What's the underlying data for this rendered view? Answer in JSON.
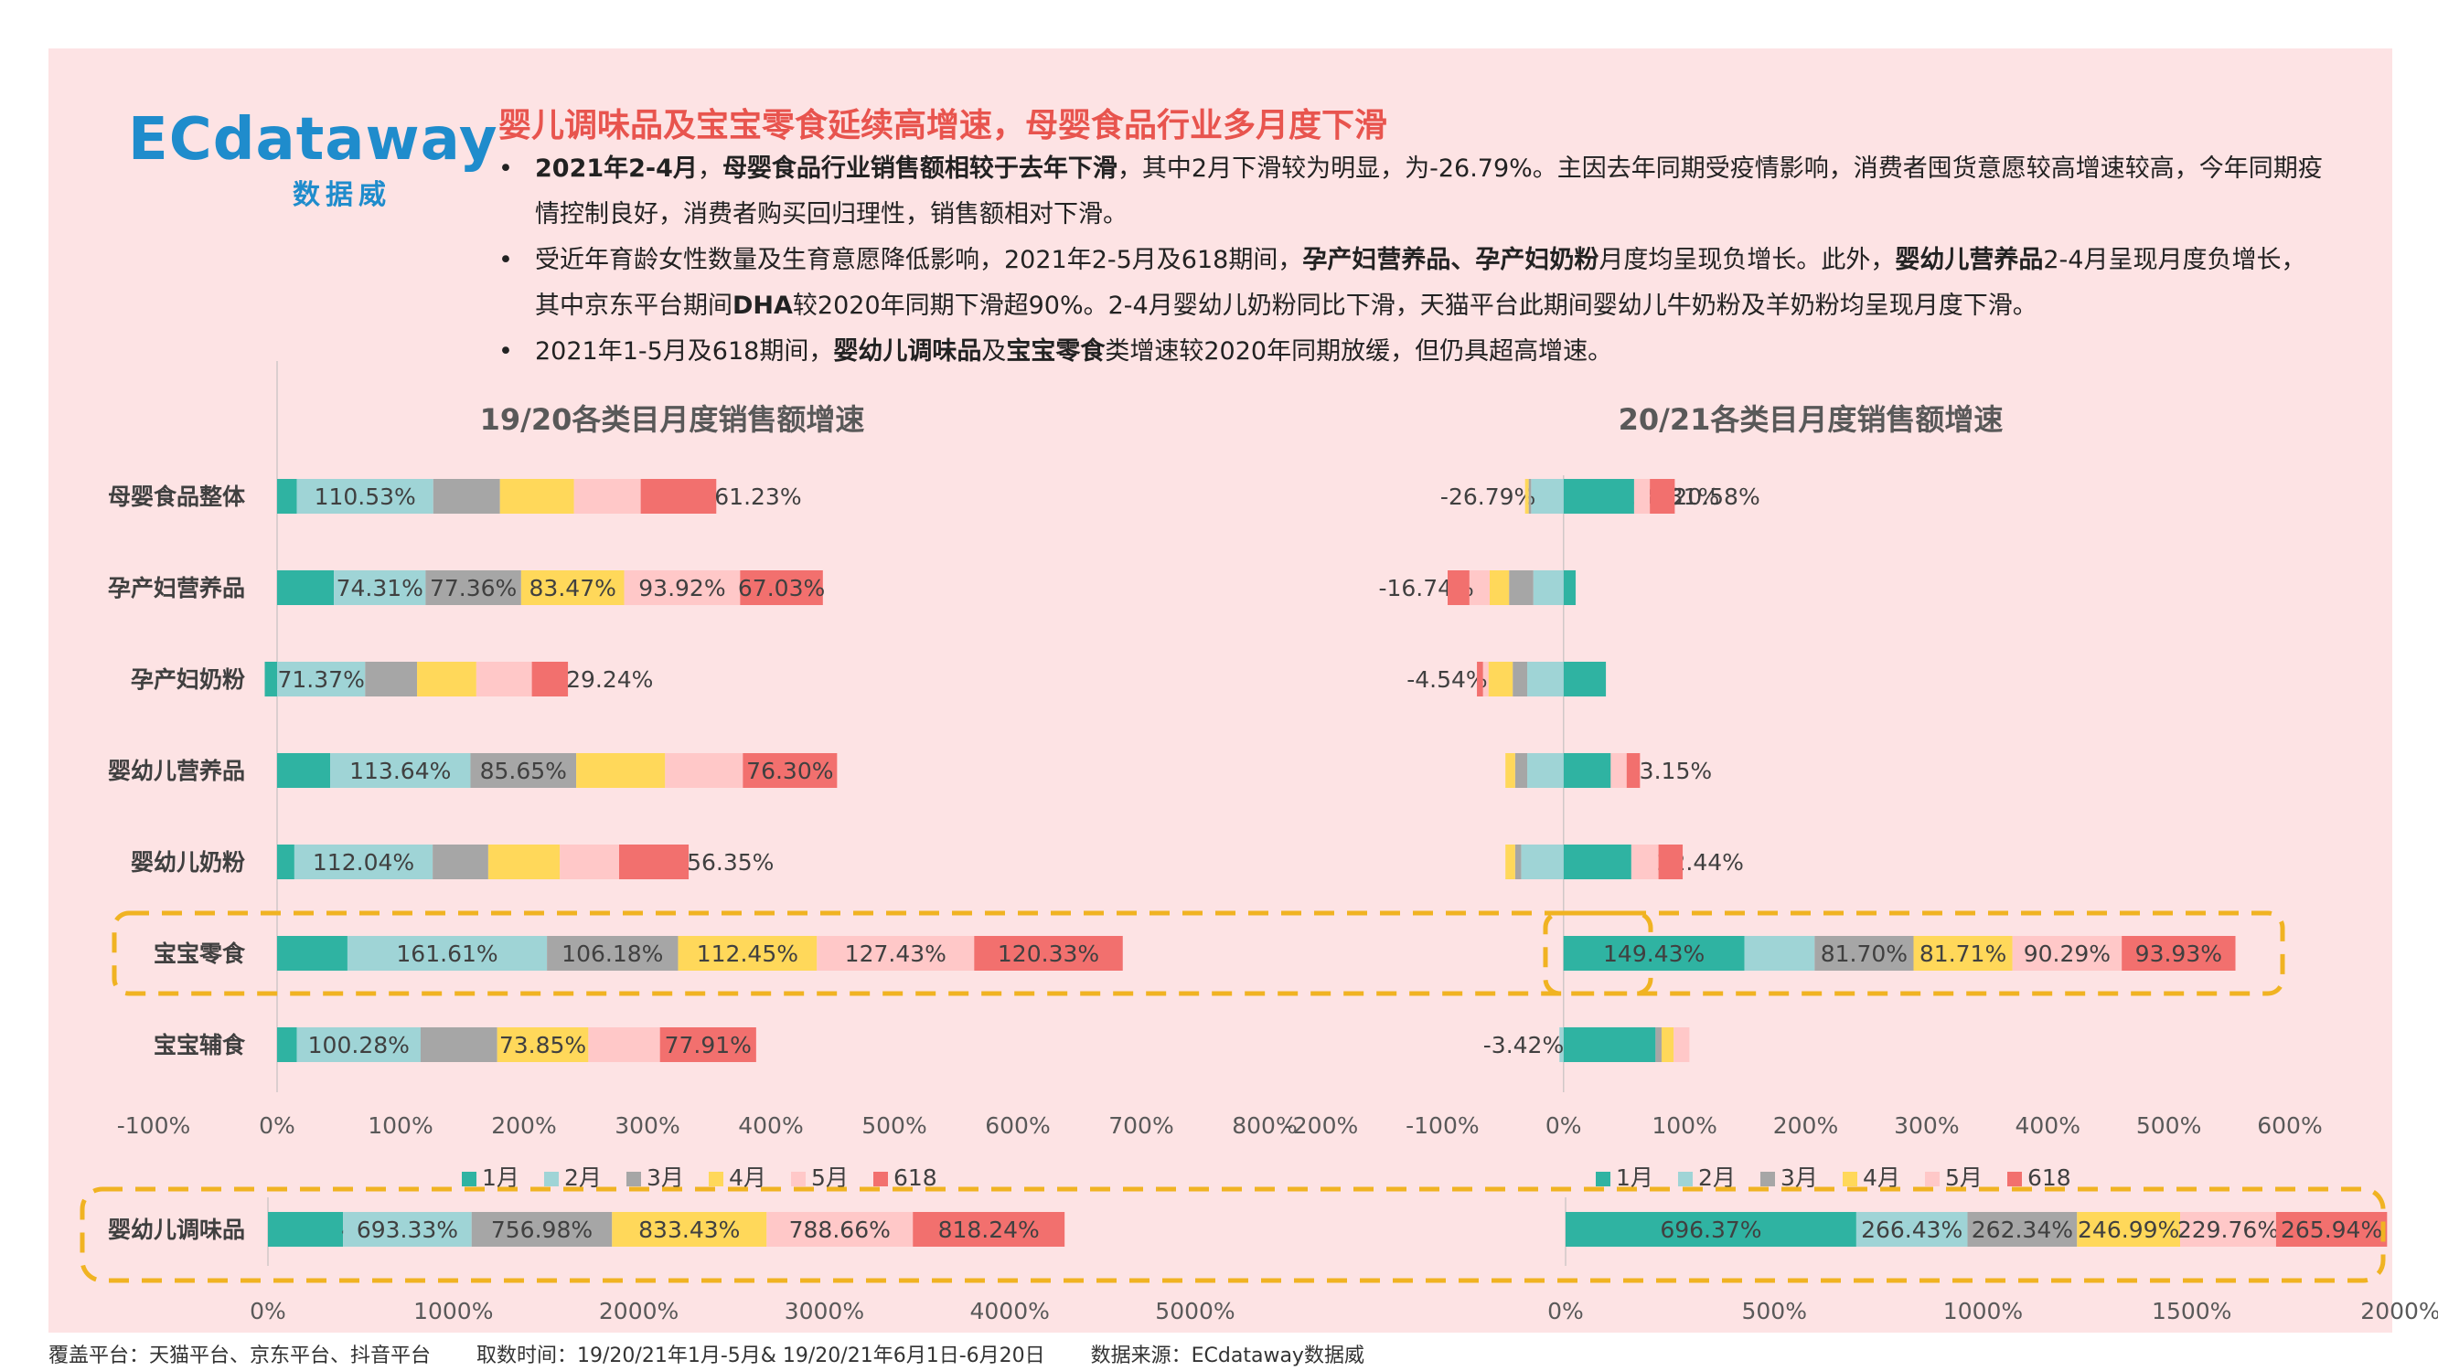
{
  "logo": {
    "brand": "ECdataway",
    "sub": "数据威"
  },
  "headline": "婴儿调味品及宝宝零食延续高增速，母婴食品行业多月度下滑",
  "bullets": [
    [
      {
        "t": "2021年2-4月",
        "b": true
      },
      {
        "t": "，",
        "b": false
      },
      {
        "t": "母婴食品行业销售额相较于去年下滑",
        "b": true
      },
      {
        "t": "，其中2月下滑较为明显，为-26.79%。主因去年同期受疫情影响，消费者囤货意愿较高增速较高，今年同期疫情控制良好，消费者购买回归理性，销售额相对下滑。",
        "b": false
      }
    ],
    [
      {
        "t": "受近年育龄女性数量及生育意愿降低影响，2021年2-5月及618期间，",
        "b": false
      },
      {
        "t": "孕产妇营养品、孕产妇奶粉",
        "b": true
      },
      {
        "t": "月度均呈现负增长。此外，",
        "b": false
      },
      {
        "t": "婴幼儿营养品",
        "b": true
      },
      {
        "t": "2-4月呈现月度负增长，其中京东平台期间",
        "b": false
      },
      {
        "t": "DHA",
        "b": true
      },
      {
        "t": "较2020年同期下滑超90%。2-4月婴幼儿奶粉同比下滑，天猫平台此期间婴幼儿牛奶粉及羊奶粉均呈现月度下滑。",
        "b": false
      }
    ],
    [
      {
        "t": "2021年1-5月及618期间，",
        "b": false
      },
      {
        "t": "婴幼儿调味品",
        "b": true
      },
      {
        "t": "及",
        "b": false
      },
      {
        "t": "宝宝零食",
        "b": true
      },
      {
        "t": "类增速较2020年同期放缓，但仍具超高增速。",
        "b": false
      }
    ]
  ],
  "footer": {
    "platform": "覆盖平台：天猫平台、京东平台、抖音平台",
    "period": "取数时间：19/20/21年1月-5月& 19/20/21年6月1日-6月20日",
    "source": "数据来源：ECdataway数据威"
  },
  "colors": {
    "jan": "#2fb3a2",
    "feb": "#9fd4d6",
    "mar": "#a6a6a6",
    "apr": "#ffd85a",
    "may": "#ffc8c8",
    "s618": "#f2706e",
    "highlight": "#f0b322"
  },
  "chart_data": [
    {
      "type": "bar",
      "stacked": true,
      "orientation": "horizontal",
      "title": "19/20各类目月度销售额增速",
      "categories": [
        "母婴食品整体",
        "孕产妇营养品",
        "孕产妇奶粉",
        "婴幼儿营养品",
        "婴幼儿奶粉",
        "宝宝零食",
        "宝宝辅食"
      ],
      "xlim": [
        -100,
        800
      ],
      "xticks": [
        "-100%",
        "0%",
        "100%",
        "200%",
        "300%",
        "400%",
        "500%",
        "600%",
        "700%",
        "800%"
      ],
      "legend": "bottom",
      "series": [
        {
          "name": "1月",
          "values": [
            16,
            46,
            -10,
            43,
            14,
            57,
            16
          ]
        },
        {
          "name": "2月",
          "values": [
            110.53,
            74.31,
            71.37,
            113.64,
            112.04,
            161.61,
            100.28
          ]
        },
        {
          "name": "3月",
          "values": [
            54,
            77.36,
            42,
            85.65,
            45,
            106.18,
            62
          ]
        },
        {
          "name": "4月",
          "values": [
            60,
            83.47,
            48,
            72,
            58,
            112.45,
            73.85
          ]
        },
        {
          "name": "5月",
          "values": [
            54,
            93.92,
            45,
            63,
            48,
            127.43,
            58
          ]
        },
        {
          "name": "618",
          "values": [
            61.23,
            67.03,
            29.24,
            76.3,
            56.35,
            120.33,
            77.91
          ]
        }
      ],
      "labels": [
        [
          "",
          "110.53%",
          "",
          "",
          "",
          "61.23%"
        ],
        [
          "",
          "74.31%",
          "77.36%",
          "83.47%",
          "93.92%",
          "67.03%"
        ],
        [
          "",
          "71.37%",
          "",
          "",
          "",
          "29.24%"
        ],
        [
          "",
          "113.64%",
          "85.65%",
          "",
          "",
          "76.30%"
        ],
        [
          "",
          "112.04%",
          "",
          "",
          "",
          "56.35%"
        ],
        [
          "",
          "161.61%",
          "106.18%",
          "112.45%",
          "127.43%",
          "120.33%"
        ],
        [
          "",
          "100.28%",
          "",
          "73.85%",
          "",
          "77.91%"
        ]
      ],
      "highlight_rows": [
        5
      ]
    },
    {
      "type": "bar",
      "stacked": true,
      "orientation": "horizontal",
      "title": "20/21各类目月度销售额增速",
      "categories": [
        "母婴食品整体",
        "孕产妇营养品",
        "孕产妇奶粉",
        "婴幼儿营养品",
        "婴幼儿奶粉",
        "宝宝零食",
        "宝宝辅食"
      ],
      "xlim": [
        -200,
        600
      ],
      "xticks": [
        "-200%",
        "-100%",
        "0%",
        "100%",
        "200%",
        "300%",
        "400%",
        "500%",
        "600%"
      ],
      "legend": "bottom",
      "series": [
        {
          "name": "1月",
          "values": [
            58.31,
            10,
            35,
            39,
            56,
            149.43,
            76
          ]
        },
        {
          "name": "2月",
          "values": [
            -26.79,
            -25,
            -30,
            -30,
            -35,
            58,
            -3.42
          ]
        },
        {
          "name": "3月",
          "values": [
            -2,
            -20,
            -12,
            -10,
            -5,
            81.7,
            5
          ]
        },
        {
          "name": "4月",
          "values": [
            -3,
            -16,
            -20,
            -8,
            -8,
            81.71,
            10
          ]
        },
        {
          "name": "5月",
          "values": [
            13,
            -16.74,
            -4.54,
            13.15,
            22.44,
            90.29,
            13
          ]
        },
        {
          "name": "618",
          "values": [
            20.58,
            -18,
            -5,
            11,
            20,
            93.93,
            0
          ]
        }
      ],
      "labels": [
        [
          "58.31%",
          "-26.79%",
          "",
          "",
          "",
          "20.58%"
        ],
        [
          "",
          "",
          "",
          "",
          "-16.74%",
          ""
        ],
        [
          "",
          "",
          "",
          "",
          "-4.54%",
          ""
        ],
        [
          "",
          "",
          "",
          "",
          "13.15%",
          ""
        ],
        [
          "",
          "",
          "",
          "",
          "22.44%",
          ""
        ],
        [
          "149.43%",
          "",
          "81.70%",
          "81.71%",
          "90.29%",
          "93.93%"
        ],
        [
          "",
          "-3.42%",
          "",
          "",
          "",
          ""
        ]
      ],
      "highlight_rows": [
        5
      ]
    },
    {
      "type": "bar",
      "stacked": true,
      "orientation": "horizontal",
      "categories": [
        "婴幼儿调味品"
      ],
      "xlim": [
        0,
        5000
      ],
      "xticks": [
        "0%",
        "1000%",
        "2000%",
        "3000%",
        "4000%",
        "5000%"
      ],
      "series": [
        {
          "name": "1月",
          "values": [
            405.04
          ]
        },
        {
          "name": "2月",
          "values": [
            693.33
          ]
        },
        {
          "name": "3月",
          "values": [
            756.98
          ]
        },
        {
          "name": "4月",
          "values": [
            833.43
          ]
        },
        {
          "name": "5月",
          "values": [
            788.66
          ]
        },
        {
          "name": "618",
          "values": [
            818.24
          ]
        }
      ],
      "labels": [
        [
          "405.04%",
          "693.33%",
          "756.98%",
          "833.43%",
          "788.66%",
          "818.24%"
        ]
      ]
    },
    {
      "type": "bar",
      "stacked": true,
      "orientation": "horizontal",
      "categories": [
        "婴幼儿调味品"
      ],
      "xlim": [
        0,
        2000
      ],
      "xticks": [
        "0%",
        "500%",
        "1000%",
        "1500%",
        "2000%"
      ],
      "series": [
        {
          "name": "1月",
          "values": [
            696.37
          ]
        },
        {
          "name": "2月",
          "values": [
            266.43
          ]
        },
        {
          "name": "3月",
          "values": [
            262.34
          ]
        },
        {
          "name": "4月",
          "values": [
            246.99
          ]
        },
        {
          "name": "5月",
          "values": [
            229.76
          ]
        },
        {
          "name": "618",
          "values": [
            265.94
          ]
        }
      ],
      "labels": [
        [
          "696.37%",
          "266.43%",
          "262.34%",
          "246.99%",
          "229.76%",
          "265.94%"
        ]
      ]
    }
  ]
}
